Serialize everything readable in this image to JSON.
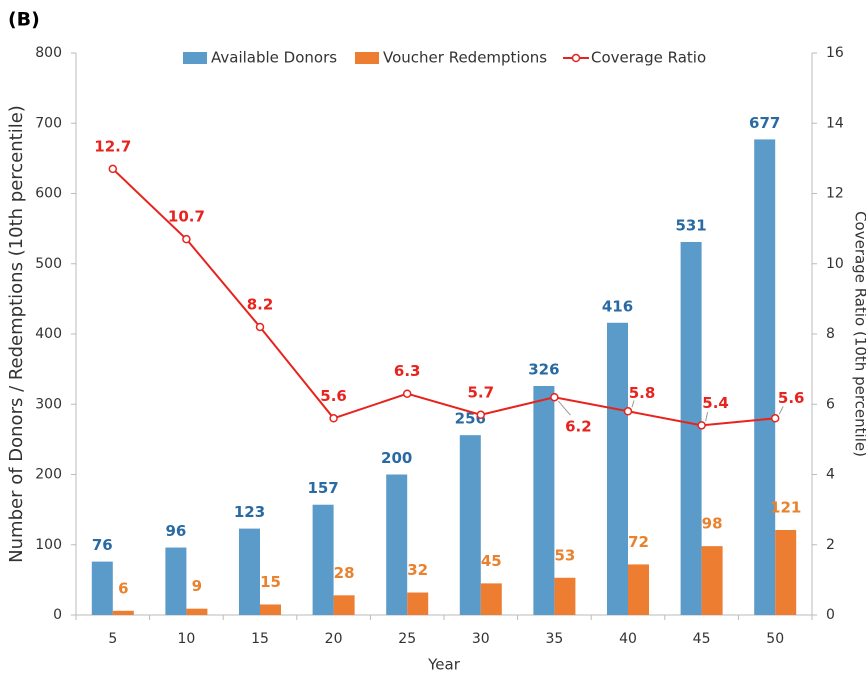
{
  "chart_data": {
    "type": "bar",
    "title": "(B)",
    "x_label": "Year",
    "y_label": "Number of Donors / Redemptions (10th percentile)",
    "y2_label": "Coverage Ratio (10th percentile)",
    "categories": [
      "5",
      "10",
      "15",
      "20",
      "25",
      "30",
      "35",
      "40",
      "45",
      "50"
    ],
    "series": [
      {
        "name": "Available Donors",
        "type": "bar",
        "color": "#5b9bc9",
        "label_color": "#2a6aa3",
        "values": [
          76,
          96,
          123,
          157,
          200,
          256,
          326,
          416,
          531,
          677
        ]
      },
      {
        "name": "Voucher Redemptions",
        "type": "bar",
        "color": "#ed7d31",
        "label_color": "#e8822e",
        "values": [
          6,
          9,
          15,
          28,
          32,
          45,
          53,
          72,
          98,
          121
        ]
      },
      {
        "name": "Coverage Ratio",
        "type": "line",
        "axis": "y2",
        "color": "#e8231d",
        "label_color": "#e8231d",
        "values": [
          12.7,
          10.7,
          8.2,
          5.6,
          6.3,
          5.7,
          6.2,
          5.8,
          5.4,
          5.6
        ]
      }
    ],
    "ylim": [
      0,
      800
    ],
    "yticks": [
      0,
      100,
      200,
      300,
      400,
      500,
      600,
      700,
      800
    ],
    "y2lim": [
      0,
      16
    ],
    "y2ticks": [
      0,
      2,
      4,
      6,
      8,
      10,
      12,
      14,
      16
    ],
    "legend": "top"
  }
}
